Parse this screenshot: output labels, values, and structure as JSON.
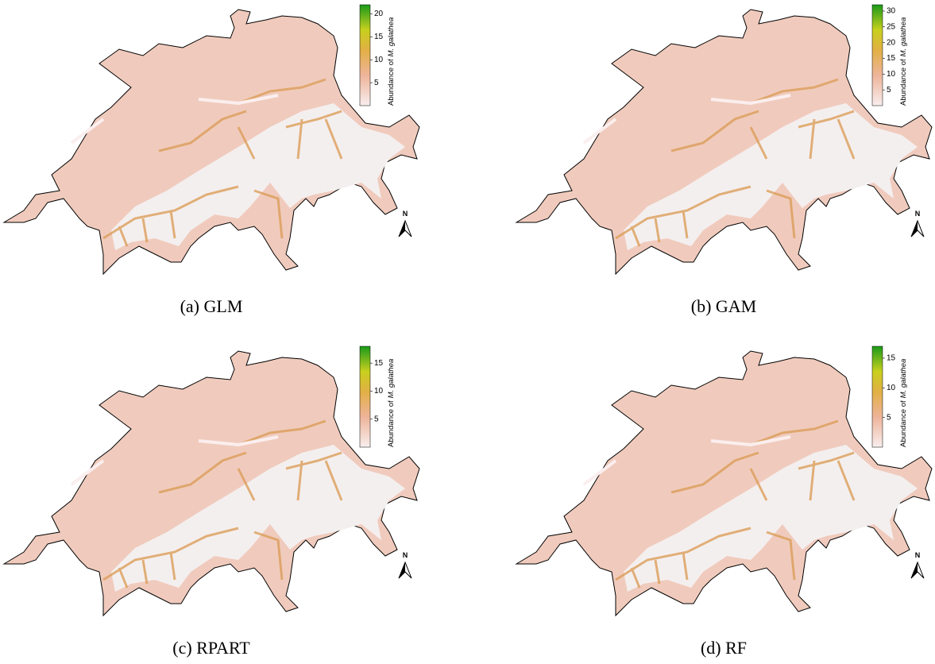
{
  "panels": [
    {
      "caption": "(a) GLM",
      "north": "N",
      "colorbar": {
        "label": "Abundance of",
        "species": "M. galathea",
        "lim": [
          0,
          22
        ],
        "ticks": [
          5,
          10,
          15,
          20
        ]
      }
    },
    {
      "caption": "(b) GAM",
      "north": "N",
      "colorbar": {
        "label": "Abundance of",
        "species": "M. galathea",
        "lim": [
          0,
          32
        ],
        "ticks": [
          5,
          10,
          15,
          20,
          25,
          30
        ]
      }
    },
    {
      "caption": "(c) RPART",
      "north": "N",
      "colorbar": {
        "label": "Abundance of",
        "species": "M. galathea",
        "lim": [
          0,
          18
        ],
        "ticks": [
          5,
          10,
          15
        ]
      }
    },
    {
      "caption": "(d) RF",
      "north": "N",
      "colorbar": {
        "label": "Abundance of",
        "species": "M. galathea",
        "lim": [
          0,
          17
        ],
        "ticks": [
          5,
          10,
          15
        ]
      }
    }
  ]
}
